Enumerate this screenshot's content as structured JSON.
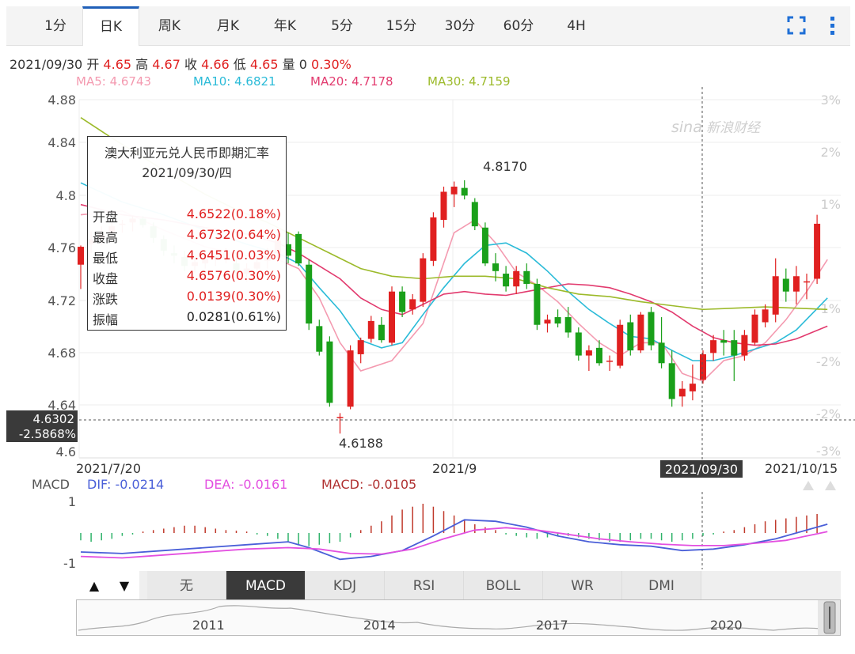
{
  "tabs": [
    {
      "label": "1分",
      "active": false
    },
    {
      "label": "日K",
      "active": true
    },
    {
      "label": "周K",
      "active": false
    },
    {
      "label": "月K",
      "active": false
    },
    {
      "label": "年K",
      "active": false
    },
    {
      "label": "5分",
      "active": false
    },
    {
      "label": "15分",
      "active": false
    },
    {
      "label": "30分",
      "active": false
    },
    {
      "label": "60分",
      "active": false
    },
    {
      "label": "4H",
      "active": false
    }
  ],
  "toolbar": {
    "fullscreen_icon": "fullscreen-icon",
    "more_icon": "more-vertical-icon"
  },
  "info": {
    "date": "2021/09/30",
    "open_label": "开",
    "open": "4.65",
    "high_label": "高",
    "high": "4.67",
    "close_label": "收",
    "close": "4.66",
    "low_label": "低",
    "low": "4.65",
    "vol_label": "量",
    "vol": "0",
    "change_pct": "0.30%"
  },
  "ma": {
    "ma5": "MA5: 4.6743",
    "ma10": "MA10: 4.6821",
    "ma20": "MA20: 4.7178",
    "ma30": "MA30: 4.7159"
  },
  "tooltip": {
    "title": "澳大利亚元兑人民币即期汇率",
    "date": "2021/09/30/四",
    "rows": [
      {
        "label": "开盘",
        "value": "4.6522(0.18%)",
        "color": "#e02020"
      },
      {
        "label": "最高",
        "value": "4.6732(0.64%)",
        "color": "#e02020"
      },
      {
        "label": "最低",
        "value": "4.6451(0.03%)",
        "color": "#e02020"
      },
      {
        "label": "收盘",
        "value": "4.6576(0.30%)",
        "color": "#e02020"
      },
      {
        "label": "涨跌",
        "value": "0.0139(0.30%)",
        "color": "#e02020"
      },
      {
        "label": "振幅",
        "value": "0.0281(0.61%)",
        "color": "#222222"
      }
    ]
  },
  "crosshair": {
    "price": "4.6302",
    "pct": "-2.5868%",
    "date": "2021/09/30"
  },
  "watermark": "新浪财经",
  "macd": {
    "label": "MACD",
    "dif": "DIF: -0.0214",
    "dea": "DEA: -0.0161",
    "macd": "MACD: -0.0105",
    "yticks": [
      "1",
      "-1"
    ]
  },
  "indicator_tabs": [
    {
      "label": "无",
      "active": false
    },
    {
      "label": "MACD",
      "active": true
    },
    {
      "label": "KDJ",
      "active": false
    },
    {
      "label": "RSI",
      "active": false
    },
    {
      "label": "BOLL",
      "active": false
    },
    {
      "label": "WR",
      "active": false
    },
    {
      "label": "DMI",
      "active": false
    }
  ],
  "arrows": {
    "up": "▲",
    "down": "▼"
  },
  "navigator": {
    "years": [
      "2011",
      "2014",
      "2017",
      "2020"
    ]
  },
  "colors": {
    "up": "#e02020",
    "down": "#1aa01a",
    "ma5": "#f49ab0",
    "ma10": "#2bbbd8",
    "ma20": "#e23a6e",
    "ma30": "#9cba2a",
    "dif": "#4a5fd8",
    "dea": "#e34fe0"
  },
  "chart_data": {
    "type": "candlestick",
    "title": "澳大利亚元兑人民币即期汇率",
    "xlabel": "",
    "ylabel": "",
    "ylim": [
      4.6,
      4.88
    ],
    "y_ticks": [
      "4.88",
      "4.84",
      "4.8",
      "4.76",
      "4.72",
      "4.68",
      "4.64",
      "4.6"
    ],
    "pct_ticks": [
      "3%",
      "2%",
      "1%",
      "-1%",
      "-2%",
      "-2%",
      "-3%"
    ],
    "x_ticks": [
      "2021/7/20",
      "2021/9",
      "2021/09/30",
      "2021/10/15"
    ],
    "annotations": [
      {
        "text": "4.8170",
        "value": 4.817
      },
      {
        "text": "4.6188",
        "value": 4.6188
      }
    ],
    "grid": true,
    "legend": "top-left",
    "candles": [
      [
        4.751,
        4.766,
        4.732,
        4.765
      ],
      [
        4.767,
        4.777,
        4.76,
        4.771
      ],
      [
        4.772,
        4.781,
        4.766,
        4.775
      ],
      [
        4.776,
        4.784,
        4.77,
        4.781
      ],
      [
        4.782,
        4.786,
        4.776,
        4.783
      ],
      [
        4.784,
        4.789,
        4.777,
        4.787
      ],
      [
        4.787,
        4.789,
        4.78,
        4.782
      ],
      [
        4.781,
        4.784,
        4.768,
        4.772
      ],
      [
        4.771,
        4.774,
        4.758,
        4.762
      ],
      [
        4.76,
        4.766,
        4.752,
        4.758
      ],
      [
        4.757,
        4.762,
        4.746,
        4.75
      ],
      [
        4.75,
        4.758,
        4.745,
        4.753
      ],
      [
        4.752,
        4.76,
        4.748,
        4.756
      ],
      [
        4.755,
        4.762,
        4.75,
        4.758
      ],
      [
        4.756,
        4.764,
        4.752,
        4.76
      ],
      [
        4.752,
        4.76,
        4.74,
        4.745
      ],
      [
        4.744,
        4.752,
        4.738,
        4.748
      ],
      [
        4.748,
        4.758,
        4.744,
        4.753
      ],
      [
        4.754,
        4.764,
        4.748,
        4.758
      ],
      [
        4.76,
        4.775,
        4.755,
        4.77
      ],
      [
        4.767,
        4.776,
        4.752,
        4.758
      ],
      [
        4.775,
        4.777,
        4.75,
        4.752
      ],
      [
        4.751,
        4.755,
        4.7,
        4.705
      ],
      [
        4.703,
        4.708,
        4.68,
        4.683
      ],
      [
        4.691,
        4.695,
        4.64,
        4.643
      ],
      [
        4.632,
        4.635,
        4.619,
        4.632
      ],
      [
        4.64,
        4.688,
        4.638,
        4.684
      ],
      [
        4.681,
        4.694,
        4.674,
        4.692
      ],
      [
        4.693,
        4.711,
        4.69,
        4.707
      ],
      [
        4.704,
        4.71,
        4.69,
        4.692
      ],
      [
        4.69,
        4.734,
        4.688,
        4.73
      ],
      [
        4.73,
        4.734,
        4.71,
        4.714
      ],
      [
        4.716,
        4.728,
        4.712,
        4.724
      ],
      [
        4.722,
        4.76,
        4.718,
        4.756
      ],
      [
        4.754,
        4.792,
        4.75,
        4.788
      ],
      [
        4.786,
        4.812,
        4.78,
        4.808
      ],
      [
        4.806,
        4.816,
        4.796,
        4.812
      ],
      [
        4.811,
        4.817,
        4.802,
        4.805
      ],
      [
        4.8,
        4.803,
        4.778,
        4.781
      ],
      [
        4.78,
        4.784,
        4.75,
        4.752
      ],
      [
        4.752,
        4.76,
        4.738,
        4.746
      ],
      [
        4.744,
        4.75,
        4.73,
        4.734
      ],
      [
        4.734,
        4.75,
        4.728,
        4.746
      ],
      [
        4.746,
        4.752,
        4.732,
        4.736
      ],
      [
        4.736,
        4.74,
        4.7,
        4.704
      ],
      [
        4.705,
        4.712,
        4.698,
        4.708
      ],
      [
        4.71,
        4.716,
        4.702,
        4.705
      ],
      [
        4.71,
        4.718,
        4.694,
        4.698
      ],
      [
        4.698,
        4.702,
        4.676,
        4.68
      ],
      [
        4.68,
        4.688,
        4.668,
        4.684
      ],
      [
        4.686,
        4.692,
        4.672,
        4.674
      ],
      [
        4.676,
        4.68,
        4.668,
        4.676
      ],
      [
        4.672,
        4.708,
        4.67,
        4.704
      ],
      [
        4.706,
        4.712,
        4.68,
        4.684
      ],
      [
        4.684,
        4.714,
        4.682,
        4.712
      ],
      [
        4.714,
        4.718,
        4.684,
        4.688
      ],
      [
        4.69,
        4.71,
        4.67,
        4.674
      ],
      [
        4.674,
        4.684,
        4.64,
        4.646
      ],
      [
        4.648,
        4.66,
        4.64,
        4.654
      ],
      [
        4.652,
        4.673,
        4.645,
        4.658
      ],
      [
        4.661,
        4.684,
        4.658,
        4.681
      ],
      [
        4.682,
        4.696,
        4.676,
        4.692
      ],
      [
        4.692,
        4.7,
        4.68,
        4.69
      ],
      [
        4.692,
        4.7,
        4.66,
        4.68
      ],
      [
        4.68,
        4.7,
        4.676,
        4.696
      ],
      [
        4.69,
        4.716,
        4.688,
        4.712
      ],
      [
        4.706,
        4.72,
        4.702,
        4.716
      ],
      [
        4.712,
        4.756,
        4.706,
        4.742
      ],
      [
        4.74,
        4.748,
        4.722,
        4.73
      ],
      [
        4.73,
        4.75,
        4.72,
        4.742
      ],
      [
        4.738,
        4.744,
        4.724,
        4.738
      ],
      [
        4.74,
        4.79,
        4.736,
        4.783
      ]
    ],
    "ma_lines": {
      "MA5": [
        [
          0,
          4.79
        ],
        [
          4,
          4.793
        ],
        [
          8,
          4.778
        ],
        [
          12,
          4.765
        ],
        [
          16,
          4.758
        ],
        [
          19,
          4.755
        ],
        [
          21,
          4.748
        ],
        [
          23,
          4.725
        ],
        [
          25,
          4.69
        ],
        [
          27,
          4.668
        ],
        [
          30,
          4.676
        ],
        [
          33,
          4.705
        ],
        [
          36,
          4.776
        ],
        [
          38,
          4.786
        ],
        [
          40,
          4.768
        ],
        [
          42,
          4.745
        ],
        [
          44,
          4.735
        ],
        [
          46,
          4.722
        ],
        [
          48,
          4.705
        ],
        [
          50,
          4.69
        ],
        [
          52,
          4.68
        ],
        [
          54,
          4.69
        ],
        [
          56,
          4.69
        ],
        [
          58,
          4.666
        ],
        [
          60,
          4.66
        ],
        [
          62,
          4.676
        ],
        [
          64,
          4.68
        ],
        [
          66,
          4.69
        ],
        [
          68,
          4.708
        ],
        [
          70,
          4.73
        ],
        [
          72,
          4.755
        ]
      ],
      "MA10": [
        [
          0,
          4.815
        ],
        [
          4,
          4.8
        ],
        [
          8,
          4.79
        ],
        [
          12,
          4.778
        ],
        [
          16,
          4.767
        ],
        [
          19,
          4.76
        ],
        [
          21,
          4.752
        ],
        [
          23,
          4.733
        ],
        [
          25,
          4.715
        ],
        [
          27,
          4.692
        ],
        [
          29,
          4.686
        ],
        [
          31,
          4.69
        ],
        [
          33,
          4.712
        ],
        [
          35,
          4.733
        ],
        [
          37,
          4.752
        ],
        [
          39,
          4.766
        ],
        [
          41,
          4.768
        ],
        [
          43,
          4.76
        ],
        [
          45,
          4.746
        ],
        [
          47,
          4.73
        ],
        [
          49,
          4.716
        ],
        [
          51,
          4.705
        ],
        [
          53,
          4.695
        ],
        [
          55,
          4.693
        ],
        [
          57,
          4.684
        ],
        [
          59,
          4.676
        ],
        [
          61,
          4.676
        ],
        [
          63,
          4.68
        ],
        [
          65,
          4.685
        ],
        [
          67,
          4.69
        ],
        [
          69,
          4.7
        ],
        [
          72,
          4.725
        ]
      ],
      "MA20": [
        [
          0,
          4.798
        ],
        [
          4,
          4.79
        ],
        [
          8,
          4.786
        ],
        [
          12,
          4.78
        ],
        [
          16,
          4.775
        ],
        [
          19,
          4.768
        ],
        [
          21,
          4.76
        ],
        [
          23,
          4.75
        ],
        [
          25,
          4.74
        ],
        [
          27,
          4.725
        ],
        [
          29,
          4.716
        ],
        [
          31,
          4.712
        ],
        [
          33,
          4.72
        ],
        [
          35,
          4.728
        ],
        [
          37,
          4.73
        ],
        [
          39,
          4.728
        ],
        [
          41,
          4.727
        ],
        [
          43,
          4.73
        ],
        [
          45,
          4.733
        ],
        [
          47,
          4.736
        ],
        [
          49,
          4.735
        ],
        [
          51,
          4.733
        ],
        [
          53,
          4.728
        ],
        [
          55,
          4.722
        ],
        [
          57,
          4.714
        ],
        [
          59,
          4.703
        ],
        [
          61,
          4.694
        ],
        [
          63,
          4.69
        ],
        [
          65,
          4.688
        ],
        [
          67,
          4.689
        ],
        [
          69,
          4.693
        ],
        [
          72,
          4.703
        ]
      ],
      "MA30": [
        [
          0,
          4.866
        ],
        [
          3,
          4.85
        ],
        [
          6,
          4.835
        ],
        [
          9,
          4.82
        ],
        [
          12,
          4.806
        ],
        [
          15,
          4.794
        ],
        [
          18,
          4.784
        ],
        [
          21,
          4.772
        ],
        [
          24,
          4.76
        ],
        [
          27,
          4.748
        ],
        [
          30,
          4.742
        ],
        [
          33,
          4.74
        ],
        [
          36,
          4.742
        ],
        [
          39,
          4.742
        ],
        [
          42,
          4.74
        ],
        [
          45,
          4.733
        ],
        [
          48,
          4.728
        ],
        [
          51,
          4.726
        ],
        [
          54,
          4.722
        ],
        [
          57,
          4.719
        ],
        [
          60,
          4.716
        ],
        [
          63,
          4.717
        ],
        [
          66,
          4.718
        ],
        [
          69,
          4.717
        ],
        [
          72,
          4.716
        ]
      ]
    },
    "macd_series": {
      "DIF": [
        [
          0,
          -0.65
        ],
        [
          4,
          -0.7
        ],
        [
          8,
          -0.6
        ],
        [
          12,
          -0.5
        ],
        [
          16,
          -0.4
        ],
        [
          20,
          -0.3
        ],
        [
          22,
          -0.5
        ],
        [
          25,
          -0.9
        ],
        [
          28,
          -0.8
        ],
        [
          31,
          -0.6
        ],
        [
          34,
          -0.1
        ],
        [
          37,
          0.45
        ],
        [
          40,
          0.4
        ],
        [
          43,
          0.2
        ],
        [
          46,
          -0.1
        ],
        [
          49,
          -0.3
        ],
        [
          52,
          -0.4
        ],
        [
          55,
          -0.45
        ],
        [
          58,
          -0.6
        ],
        [
          61,
          -0.55
        ],
        [
          64,
          -0.4
        ],
        [
          67,
          -0.2
        ],
        [
          70,
          0.1
        ],
        [
          72,
          0.3
        ]
      ],
      "DEA": [
        [
          0,
          -0.8
        ],
        [
          4,
          -0.85
        ],
        [
          8,
          -0.75
        ],
        [
          12,
          -0.65
        ],
        [
          16,
          -0.55
        ],
        [
          20,
          -0.5
        ],
        [
          23,
          -0.55
        ],
        [
          26,
          -0.7
        ],
        [
          29,
          -0.72
        ],
        [
          32,
          -0.55
        ],
        [
          35,
          -0.2
        ],
        [
          38,
          0.1
        ],
        [
          41,
          0.18
        ],
        [
          44,
          0.1
        ],
        [
          47,
          -0.05
        ],
        [
          50,
          -0.2
        ],
        [
          53,
          -0.3
        ],
        [
          56,
          -0.38
        ],
        [
          59,
          -0.43
        ],
        [
          62,
          -0.43
        ],
        [
          65,
          -0.35
        ],
        [
          68,
          -0.25
        ],
        [
          70,
          -0.1
        ],
        [
          72,
          0.05
        ]
      ],
      "histogram": [
        -0.25,
        -0.3,
        -0.25,
        -0.2,
        -0.1,
        -0.05,
        0.05,
        0.1,
        0.15,
        0.2,
        0.25,
        0.25,
        0.2,
        0.15,
        0.1,
        0.08,
        0.05,
        -0.05,
        -0.1,
        -0.2,
        -0.3,
        -0.4,
        -0.45,
        -0.4,
        -0.35,
        -0.3,
        -0.15,
        0.1,
        0.25,
        0.4,
        0.6,
        0.8,
        0.9,
        1.0,
        0.9,
        0.75,
        0.6,
        0.45,
        0.3,
        0.2,
        0.1,
        -0.05,
        -0.1,
        -0.15,
        -0.2,
        -0.15,
        -0.1,
        -0.1,
        -0.15,
        -0.2,
        -0.25,
        -0.3,
        -0.3,
        -0.25,
        -0.2,
        -0.2,
        -0.25,
        -0.3,
        -0.25,
        -0.2,
        -0.1,
        -0.05,
        0.05,
        0.1,
        0.2,
        0.3,
        0.4,
        0.45,
        0.5,
        0.55,
        0.6,
        0.65
      ]
    }
  }
}
